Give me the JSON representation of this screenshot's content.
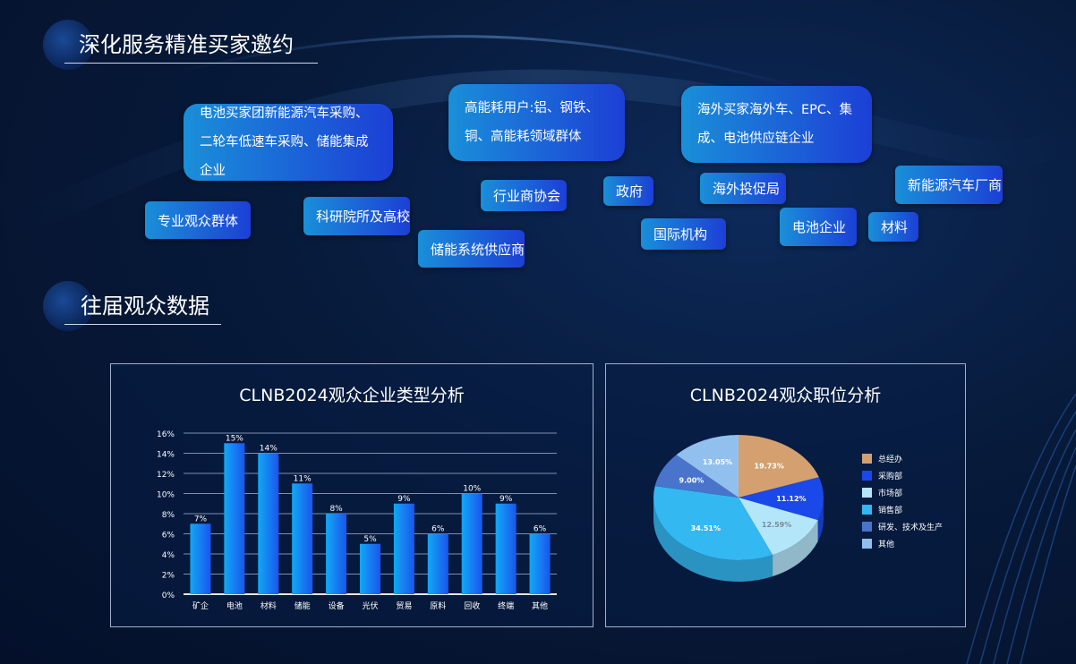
{
  "section1": {
    "title": "深化服务精准买家邀约"
  },
  "section2": {
    "title": "往届观众数据"
  },
  "tags": [
    {
      "label": "电池买家团新能源汽车采购、二轮车低速车采购、储能集成企业"
    },
    {
      "label": "高能耗用户:铝、钢铁、铜、高能耗领域群体"
    },
    {
      "label": "海外买家海外车、EPC、集成、电池供应链企业"
    },
    {
      "label": "专业观众群体"
    },
    {
      "label": "科研院所及高校"
    },
    {
      "label": "行业商协会"
    },
    {
      "label": "储能系统供应商"
    },
    {
      "label": "政府"
    },
    {
      "label": "海外投促局"
    },
    {
      "label": "国际机构"
    },
    {
      "label": "电池企业"
    },
    {
      "label": "材料"
    },
    {
      "label": "新能源汽车厂商"
    }
  ],
  "chart_data": [
    {
      "type": "bar",
      "title": "CLNB2024观众企业类型分析",
      "categories": [
        "矿企",
        "电池",
        "材料",
        "储能",
        "设备",
        "光伏",
        "贸易",
        "原料",
        "回收",
        "终端",
        "其他"
      ],
      "values": [
        7,
        15,
        14,
        11,
        8,
        5,
        9,
        6,
        10,
        9,
        6
      ],
      "data_labels": [
        "7%",
        "15%",
        "14%",
        "11%",
        "8%",
        "5%",
        "9%",
        "6%",
        "10%",
        "9%",
        "6%"
      ],
      "yticks": [
        "0%",
        "2%",
        "4%",
        "6%",
        "8%",
        "10%",
        "12%",
        "14%",
        "16%"
      ],
      "ylim": [
        0,
        16
      ],
      "grid": true,
      "colors": [
        "#12a8f5",
        "#1b55ee"
      ]
    },
    {
      "type": "pie",
      "title": "CLNB2024观众职位分析",
      "style": "3d",
      "labels": [
        "总经办",
        "采购部",
        "市场部",
        "销售部",
        "研发、技术及生产",
        "其他"
      ],
      "values": [
        19.73,
        11.12,
        12.59,
        34.51,
        9.0,
        13.05
      ],
      "data_labels": [
        "19.73%",
        "11.12%",
        "12.59%",
        "34.51%",
        "9.00%",
        "13.05%"
      ],
      "colors": [
        "#d4a070",
        "#1b48e8",
        "#b4e6fa",
        "#34b8f2",
        "#4874cc",
        "#92c0ee"
      ],
      "legend": "right"
    }
  ]
}
